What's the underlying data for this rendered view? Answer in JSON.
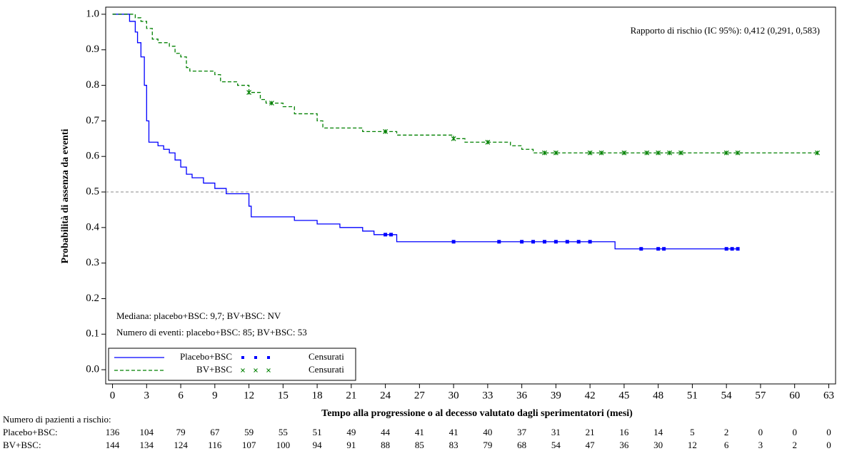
{
  "chart_data": {
    "type": "kaplan-meier",
    "annotation_hr": "Rapporto di rischio (IC 95%): 0,412 (0,291, 0,583)",
    "annotation_median": "Mediana: placebo+BSC: 9,7; BV+BSC: NV",
    "annotation_events": "Numero di eventi: placebo+BSC: 85; BV+BSC: 53",
    "y_label": "Probabilità di assenza da eventi",
    "x_label": "Tempo alla progressione o al decesso valutato dagli sperimentatori (mesi)",
    "censor_label": "Censurati",
    "reference_line": 0.5,
    "xlim": [
      -0.6,
      63.6
    ],
    "ylim": [
      -0.04,
      1.02
    ],
    "xticks": [
      0,
      3,
      6,
      9,
      12,
      15,
      18,
      21,
      24,
      27,
      30,
      33,
      36,
      39,
      42,
      45,
      48,
      51,
      54,
      57,
      60,
      63
    ],
    "yticks": [
      {
        "value": 0,
        "label": "0.0"
      },
      0.1,
      0.2,
      0.3,
      0.4,
      0.5,
      0.6,
      0.7,
      0.8,
      0.9,
      {
        "value": 1,
        "label": "1.0"
      }
    ],
    "series": [
      {
        "name": "Placebo+BSC",
        "color": "#0000ff",
        "dash": false,
        "x": [
          0,
          1.5,
          2,
          2.2,
          2.5,
          2.8,
          3.0,
          3.2,
          4,
          4.5,
          5,
          5.5,
          6,
          6.5,
          7,
          8,
          9,
          10,
          12,
          12.2,
          16,
          18,
          20,
          22,
          23,
          25,
          44.2,
          55
        ],
        "y": [
          1.0,
          0.98,
          0.95,
          0.92,
          0.88,
          0.8,
          0.7,
          0.64,
          0.63,
          0.62,
          0.61,
          0.59,
          0.57,
          0.55,
          0.54,
          0.525,
          0.51,
          0.495,
          0.46,
          0.43,
          0.42,
          0.41,
          0.4,
          0.39,
          0.38,
          0.36,
          0.34,
          0.34
        ],
        "censored_x": [
          24,
          24.5,
          30,
          34,
          36,
          37,
          38,
          39,
          40,
          41,
          42,
          46.5,
          48,
          48.5,
          54,
          54.5,
          55
        ],
        "censored_y": [
          0.38,
          0.38,
          0.36,
          0.36,
          0.36,
          0.36,
          0.36,
          0.36,
          0.36,
          0.36,
          0.36,
          0.34,
          0.34,
          0.34,
          0.34,
          0.34,
          0.34
        ],
        "at_risk": [
          136,
          104,
          79,
          67,
          59,
          55,
          51,
          49,
          44,
          41,
          41,
          40,
          37,
          31,
          21,
          16,
          14,
          5,
          2,
          0,
          0,
          0
        ]
      },
      {
        "name": "BV+BSC",
        "color": "#008000",
        "dash": true,
        "x": [
          0,
          2,
          2.5,
          3,
          3.5,
          4,
          5,
          5.5,
          6,
          6.5,
          6.8,
          9,
          9.5,
          11,
          12,
          13,
          13.5,
          15,
          16,
          18,
          18.5,
          22,
          25,
          30,
          31,
          35,
          36,
          37,
          62
        ],
        "y": [
          1.0,
          0.99,
          0.98,
          0.96,
          0.93,
          0.92,
          0.91,
          0.89,
          0.88,
          0.85,
          0.84,
          0.83,
          0.81,
          0.8,
          0.78,
          0.76,
          0.75,
          0.74,
          0.72,
          0.7,
          0.68,
          0.67,
          0.66,
          0.65,
          0.64,
          0.63,
          0.62,
          0.61,
          0.61
        ],
        "censored_x": [
          12,
          14,
          24,
          30,
          33,
          38,
          39,
          42,
          43,
          45,
          47,
          48,
          49,
          50,
          54,
          55,
          62
        ],
        "censored_y": [
          0.78,
          0.75,
          0.67,
          0.65,
          0.64,
          0.61,
          0.61,
          0.61,
          0.61,
          0.61,
          0.61,
          0.61,
          0.61,
          0.61,
          0.61,
          0.61,
          0.61
        ],
        "at_risk": [
          144,
          134,
          124,
          116,
          107,
          100,
          94,
          91,
          88,
          85,
          83,
          79,
          68,
          54,
          47,
          36,
          30,
          12,
          6,
          3,
          2,
          0
        ]
      }
    ],
    "at_risk_title": "Numero di pazienti a rischio:",
    "at_risk_labels": [
      "Placebo+BSC:",
      "BV+BSC:"
    ]
  }
}
